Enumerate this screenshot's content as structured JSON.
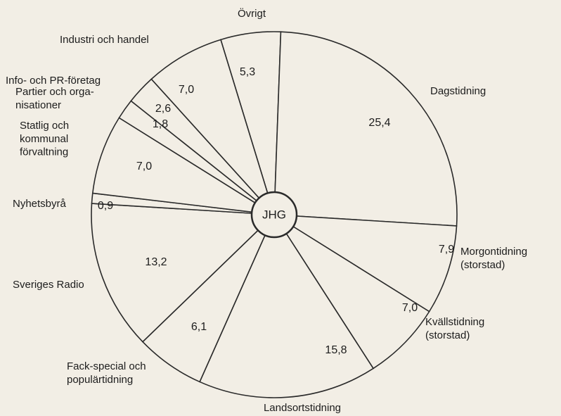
{
  "chart_data": {
    "type": "pie",
    "center_label": "JHG",
    "categories": [
      "Övrigt",
      "Dagstidning",
      "Morgontidning\n(storstad)",
      "Kvällstidning\n(storstad)",
      "Landsortstidning",
      "Fack-special och\npopulärtidning",
      "Sveriges Radio",
      "Nyhetsbyrå",
      "Statlig och\nkommunal\nförvaltning",
      "Partier och orga-\nnisationer",
      "Info- och PR-företag",
      "Industri och handel"
    ],
    "values": [
      5.3,
      25.4,
      7.9,
      7.0,
      15.8,
      6.1,
      13.2,
      0.9,
      7.0,
      1.8,
      2.6,
      7.0
    ],
    "value_labels": [
      "5,3",
      "25,4",
      "7,9",
      "7,0",
      "15,8",
      "6,1",
      "13,2",
      "0,9",
      "7,0",
      "1,8",
      "2,6",
      "7,0"
    ],
    "color": "#2a2a2a"
  }
}
